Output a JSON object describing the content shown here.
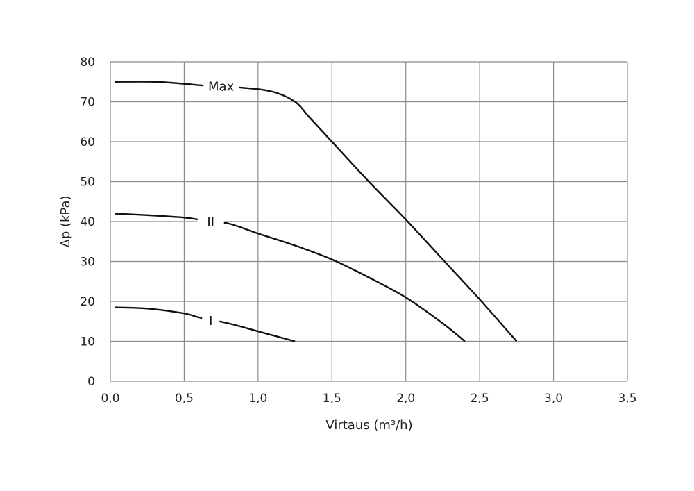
{
  "chart_data": {
    "type": "line",
    "title": "",
    "xlabel": "Virtaus (m³/h)",
    "ylabel": "Δp (kPa)",
    "xlim": [
      0,
      3.5
    ],
    "ylim": [
      0,
      80
    ],
    "xticks": [
      "0,0",
      "0,5",
      "1,0",
      "1,5",
      "2,0",
      "2,5",
      "3,0",
      "3,5"
    ],
    "yticks": [
      "0",
      "10",
      "20",
      "30",
      "40",
      "50",
      "60",
      "70",
      "80"
    ],
    "grid": true,
    "series": [
      {
        "name": "Max",
        "label_at": [
          0.75,
          74
        ],
        "x": [
          0.03,
          0.3,
          0.5,
          0.65,
          0.9,
          1.1,
          1.25,
          1.35,
          1.5,
          1.75,
          2.0,
          2.25,
          2.5,
          2.75
        ],
        "y": [
          75,
          75,
          74.5,
          74,
          73.5,
          72.5,
          70,
          66,
          60,
          50,
          40.5,
          30.5,
          20.5,
          10
        ]
      },
      {
        "name": "II",
        "label_at": [
          0.68,
          40
        ],
        "x": [
          0.03,
          0.3,
          0.5,
          0.6,
          0.8,
          1.0,
          1.25,
          1.5,
          1.75,
          2.0,
          2.25,
          2.4
        ],
        "y": [
          42,
          41.5,
          41,
          40.5,
          39.5,
          37,
          34,
          30.5,
          26,
          21,
          14.5,
          10
        ]
      },
      {
        "name": "I",
        "label_at": [
          0.68,
          15.3
        ],
        "x": [
          0.03,
          0.25,
          0.5,
          0.6,
          0.8,
          1.0,
          1.25
        ],
        "y": [
          18.5,
          18.2,
          17,
          16,
          14.5,
          12.5,
          10
        ]
      }
    ]
  }
}
